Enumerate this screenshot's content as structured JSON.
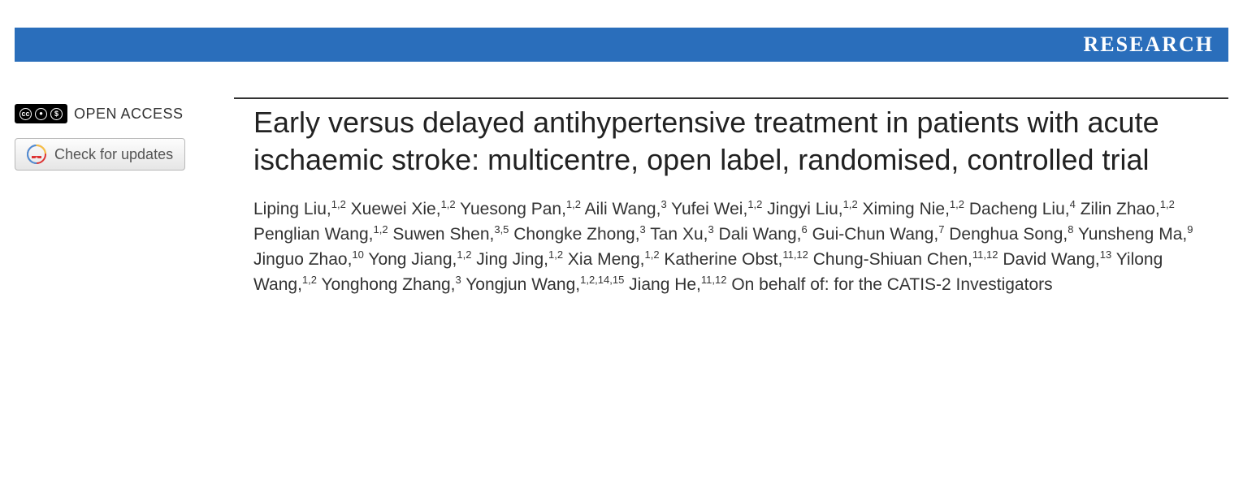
{
  "banner": {
    "label": "RESEARCH",
    "background_color": "#2a6ebb",
    "text_color": "#ffffff"
  },
  "sidebar": {
    "open_access_label": "OPEN ACCESS",
    "cc_symbols": [
      "cc",
      "BY",
      "NC"
    ],
    "updates_button": "Check for updates"
  },
  "article": {
    "title": "Early versus delayed antihypertensive treatment in patients with acute ischaemic stroke: multicentre, open label, randomised, controlled trial",
    "authors": [
      {
        "name": "Liping Liu",
        "affil": "1,2"
      },
      {
        "name": "Xuewei Xie",
        "affil": "1,2"
      },
      {
        "name": "Yuesong Pan",
        "affil": "1,2"
      },
      {
        "name": "Aili Wang",
        "affil": "3"
      },
      {
        "name": "Yufei Wei",
        "affil": "1,2"
      },
      {
        "name": "Jingyi Liu",
        "affil": "1,2"
      },
      {
        "name": "Ximing Nie",
        "affil": "1,2"
      },
      {
        "name": "Dacheng Liu",
        "affil": "4"
      },
      {
        "name": "Zilin Zhao",
        "affil": "1,2"
      },
      {
        "name": "Penglian Wang",
        "affil": "1,2"
      },
      {
        "name": "Suwen Shen",
        "affil": "3,5"
      },
      {
        "name": "Chongke Zhong",
        "affil": "3"
      },
      {
        "name": "Tan Xu",
        "affil": "3"
      },
      {
        "name": "Dali Wang",
        "affil": "6"
      },
      {
        "name": "Gui-Chun Wang",
        "affil": "7"
      },
      {
        "name": "Denghua Song",
        "affil": "8"
      },
      {
        "name": "Yunsheng Ma",
        "affil": "9"
      },
      {
        "name": "Jinguo Zhao",
        "affil": "10"
      },
      {
        "name": "Yong Jiang",
        "affil": "1,2"
      },
      {
        "name": "Jing Jing",
        "affil": "1,2"
      },
      {
        "name": "Xia Meng",
        "affil": "1,2"
      },
      {
        "name": "Katherine Obst",
        "affil": "11,12"
      },
      {
        "name": "Chung-Shiuan Chen",
        "affil": "11,12"
      },
      {
        "name": "David Wang",
        "affil": "13"
      },
      {
        "name": "Yilong Wang",
        "affil": "1,2"
      },
      {
        "name": "Yonghong Zhang",
        "affil": "3"
      },
      {
        "name": "Yongjun Wang",
        "affil": "1,2,14,15"
      },
      {
        "name": "Jiang He",
        "affil": "11,12"
      }
    ],
    "trailing": "On behalf of: for the CATIS-2 Investigators"
  },
  "colors": {
    "text": "#333333",
    "title": "#222222",
    "rule": "#333333",
    "background": "#ffffff"
  }
}
